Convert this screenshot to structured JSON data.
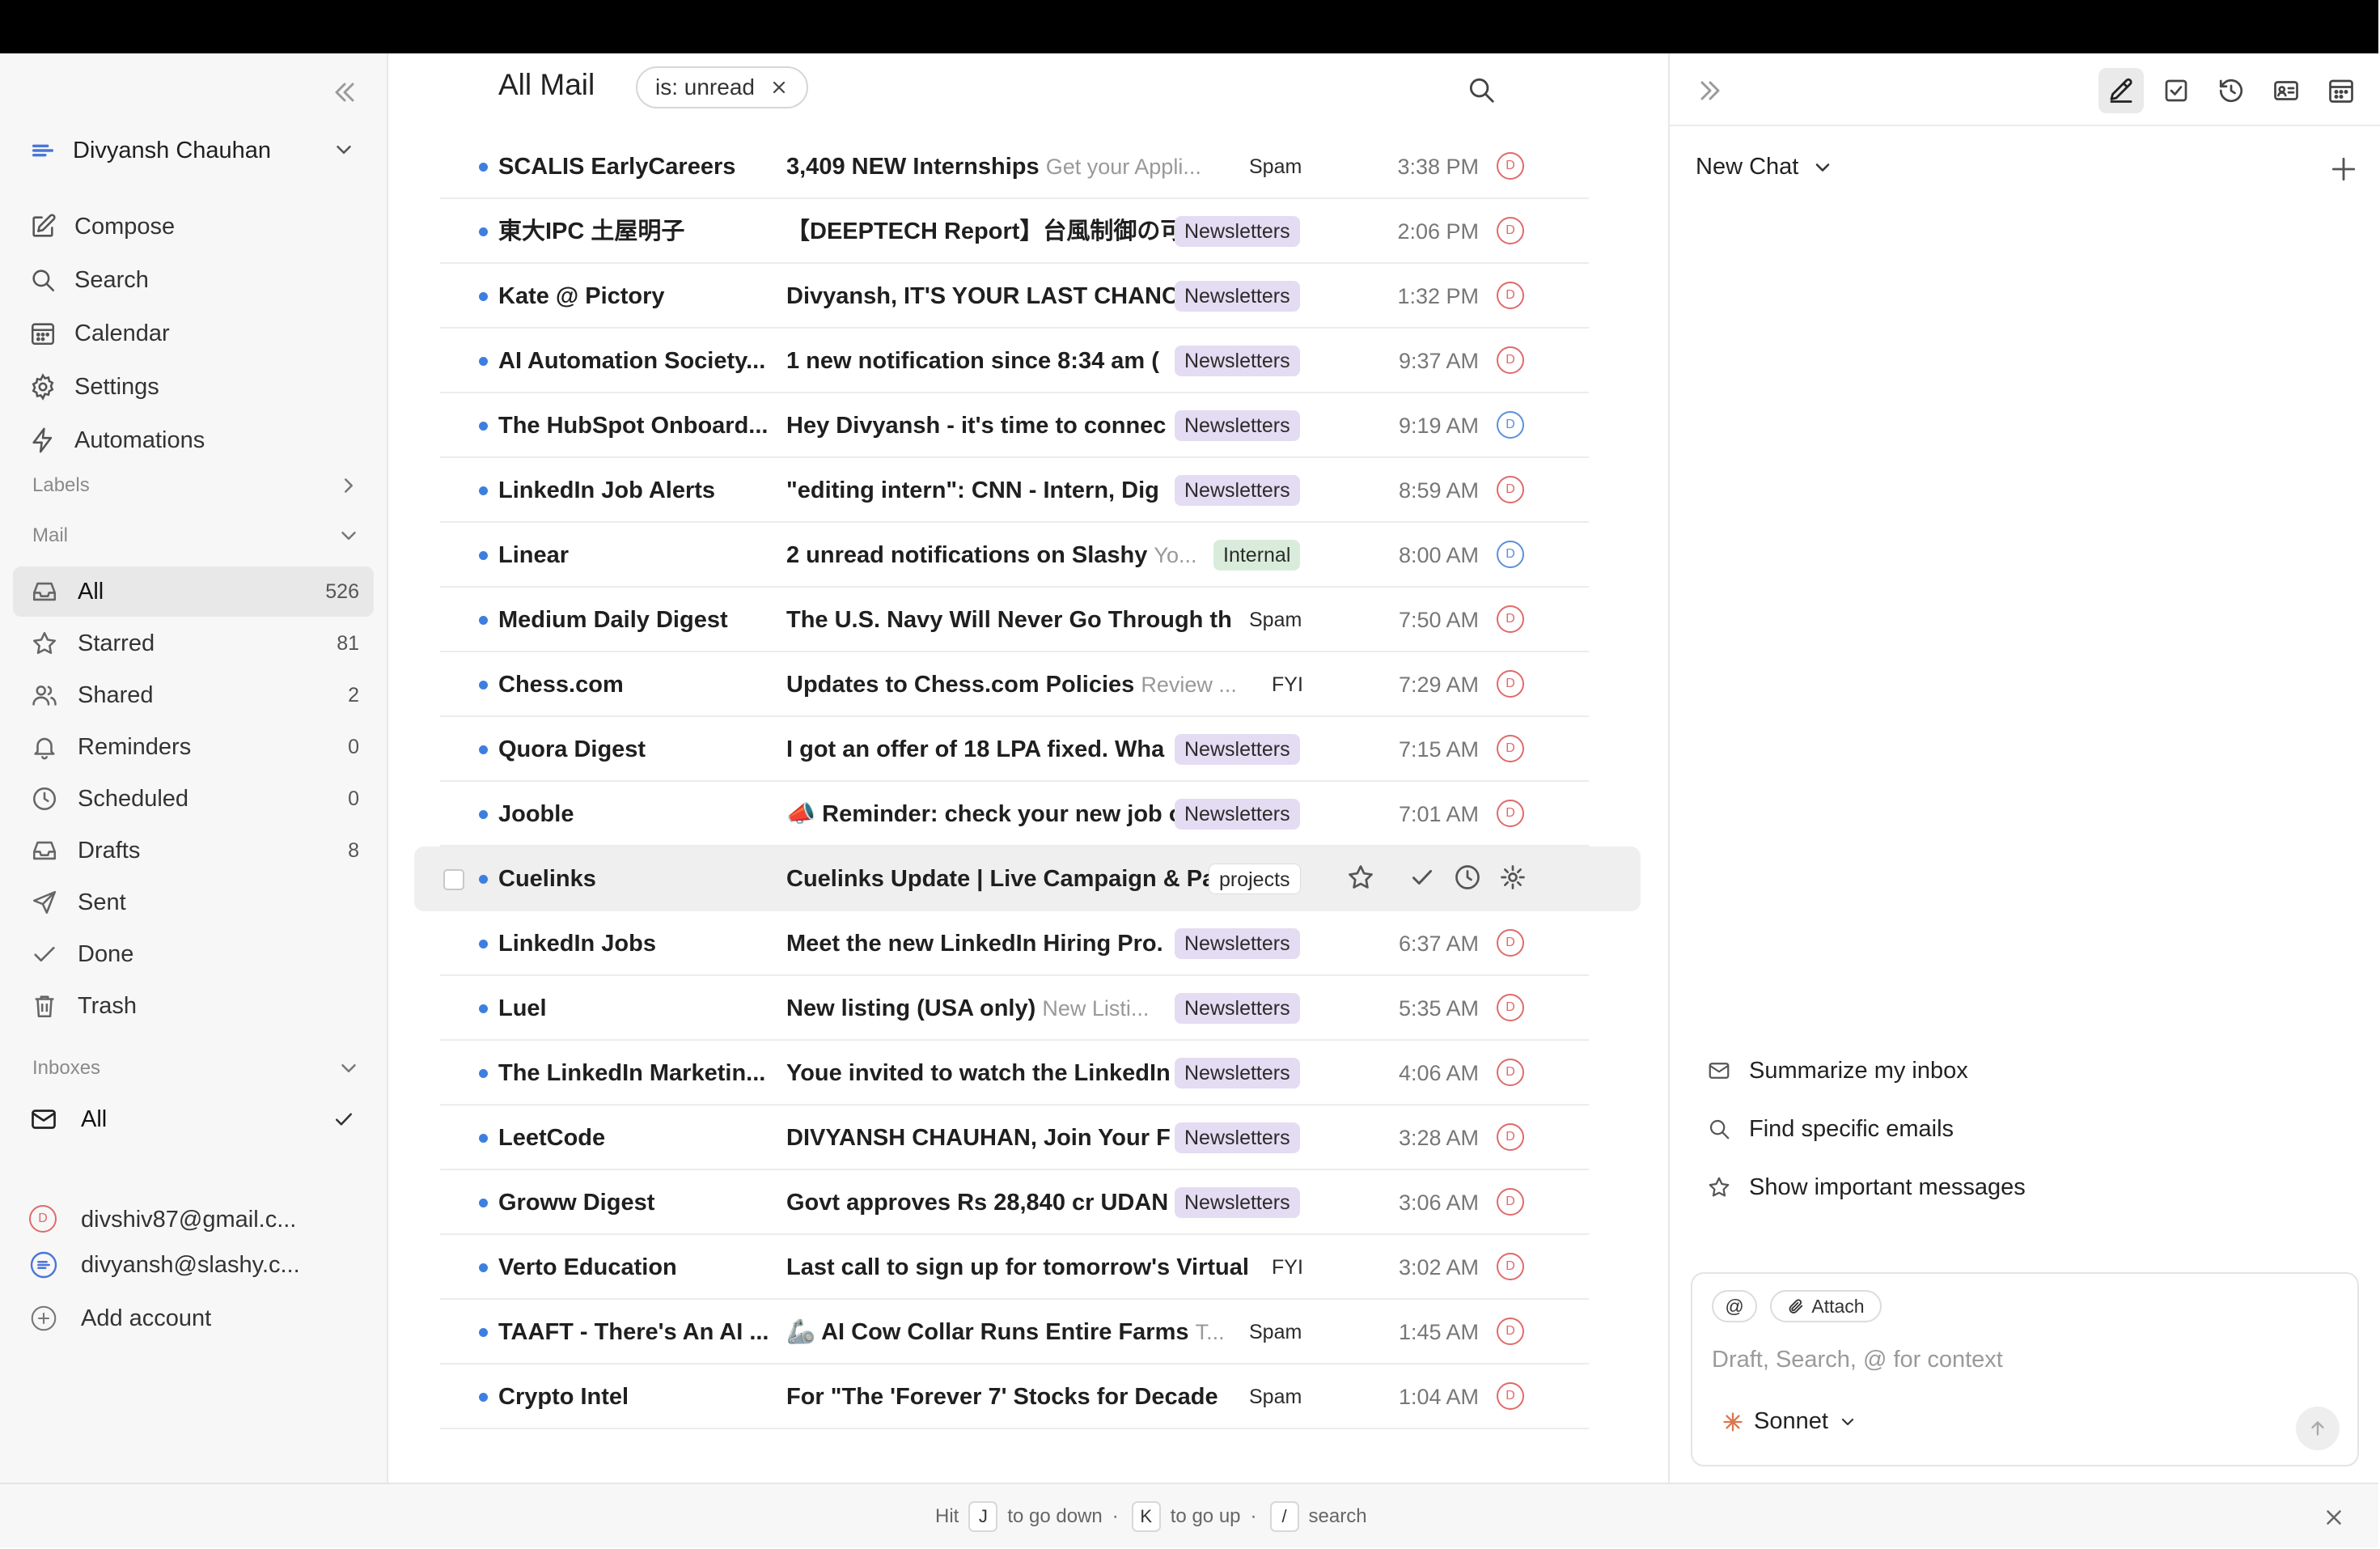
{
  "account": {
    "name": "Divyansh Chauhan"
  },
  "nav": [
    {
      "label": "Compose",
      "icon": "compose-icon"
    },
    {
      "label": "Search",
      "icon": "search-icon"
    },
    {
      "label": "Calendar",
      "icon": "calendar-icon"
    },
    {
      "label": "Settings",
      "icon": "gear-icon"
    },
    {
      "label": "Automations",
      "icon": "bolt-icon"
    }
  ],
  "sections": {
    "labels": "Labels",
    "mail": "Mail",
    "inboxes": "Inboxes"
  },
  "mail_folders": [
    {
      "label": "All",
      "count": "526",
      "active": true
    },
    {
      "label": "Starred",
      "count": "81"
    },
    {
      "label": "Shared",
      "count": "2"
    },
    {
      "label": "Reminders",
      "count": "0"
    },
    {
      "label": "Scheduled",
      "count": "0"
    },
    {
      "label": "Drafts",
      "count": "8"
    },
    {
      "label": "Sent",
      "count": ""
    },
    {
      "label": "Done",
      "count": ""
    },
    {
      "label": "Trash",
      "count": ""
    }
  ],
  "inboxes": [
    {
      "label": "All",
      "checked": true
    },
    {
      "label": "divshiv87@gmail.c...",
      "avatar": "D"
    },
    {
      "label": "divyansh@slashy.c..."
    },
    {
      "label": "Add account"
    }
  ],
  "header": {
    "title": "All Mail",
    "filter": "is: unread"
  },
  "emails": [
    {
      "sender": "SCALIS EarlyCareers",
      "subject": "3,409 NEW Internships",
      "preview": "Get your Appli...",
      "tag": "Spam",
      "time": "3:38 PM",
      "avatar": "D"
    },
    {
      "sender": "東大IPC 土屋明子",
      "subject": "【DEEPTECH Report】台風制御の可",
      "preview": "",
      "tag": "Newsletters",
      "time": "2:06 PM",
      "avatar": "D"
    },
    {
      "sender": "Kate @ Pictory",
      "subject": "Divyansh, IT'S YOUR LAST CHANC",
      "preview": "",
      "tag": "Newsletters",
      "time": "1:32 PM",
      "avatar": "D"
    },
    {
      "sender": "AI Automation Society...",
      "subject": "1 new notification since 8:34 am (",
      "preview": "",
      "tag": "Newsletters",
      "time": "9:37 AM",
      "avatar": "D"
    },
    {
      "sender": "The HubSpot Onboard...",
      "subject": "Hey Divyansh - it's time to connec",
      "preview": "",
      "tag": "Newsletters",
      "time": "9:19 AM",
      "avatar": "D"
    },
    {
      "sender": "LinkedIn Job Alerts",
      "subject": "\"editing intern\": CNN - Intern, Dig",
      "preview": "",
      "tag": "Newsletters",
      "time": "8:59 AM",
      "avatar": "D"
    },
    {
      "sender": "Linear",
      "subject": "2 unread notifications on Slashy",
      "preview": "Yo...",
      "tag": "Internal",
      "time": "8:00 AM",
      "avatar": "D"
    },
    {
      "sender": "Medium Daily Digest",
      "subject": "The U.S. Navy Will Never Go Through th",
      "preview": "",
      "tag": "Spam",
      "time": "7:50 AM",
      "avatar": "D"
    },
    {
      "sender": "Chess.com",
      "subject": "Updates to Chess.com Policies",
      "preview": "Review ...",
      "tag": "FYI",
      "time": "7:29 AM",
      "avatar": "D"
    },
    {
      "sender": "Quora Digest",
      "subject": "I got an offer of 18 LPA fixed. Wha",
      "preview": "",
      "tag": "Newsletters",
      "time": "7:15 AM",
      "avatar": "D"
    },
    {
      "sender": "Jooble",
      "subject": "📣 Reminder: check your new job o",
      "preview": "",
      "tag": "Newsletters",
      "time": "7:01 AM",
      "avatar": "D"
    },
    {
      "sender": "Cuelinks",
      "subject": "Cuelinks Update | Live Campaign & Pa",
      "preview": "",
      "tag": "projects",
      "time": "",
      "avatar": ""
    },
    {
      "sender": "LinkedIn Jobs",
      "subject": "Meet the new LinkedIn Hiring Pro.",
      "preview": "",
      "tag": "Newsletters",
      "time": "6:37 AM",
      "avatar": "D"
    },
    {
      "sender": "Luel",
      "subject": "New listing (USA only)",
      "preview": "New Listi...",
      "tag": "Newsletters",
      "time": "5:35 AM",
      "avatar": "D"
    },
    {
      "sender": "The LinkedIn Marketin...",
      "subject": "Youe invited to watch the LinkedIn",
      "preview": "",
      "tag": "Newsletters",
      "time": "4:06 AM",
      "avatar": "D"
    },
    {
      "sender": "LeetCode",
      "subject": "DIVYANSH CHAUHAN, Join Your F",
      "preview": "",
      "tag": "Newsletters",
      "time": "3:28 AM",
      "avatar": "D"
    },
    {
      "sender": "Groww Digest",
      "subject": "Govt approves Rs 28,840 cr UDAN",
      "preview": "",
      "tag": "Newsletters",
      "time": "3:06 AM",
      "avatar": "D"
    },
    {
      "sender": "Verto Education",
      "subject": "Last call to sign up for tomorrow's Virtual",
      "preview": "",
      "tag": "FYI",
      "time": "3:02 AM",
      "avatar": "D"
    },
    {
      "sender": "TAAFT - There's An AI ...",
      "subject": "🦾 AI Cow Collar Runs Entire Farms",
      "preview": "T...",
      "tag": "Spam",
      "time": "1:45 AM",
      "avatar": "D"
    },
    {
      "sender": "Crypto Intel",
      "subject": "For \"The 'Forever 7' Stocks for Decade",
      "preview": "",
      "tag": "Spam",
      "time": "1:04 AM",
      "avatar": "D"
    }
  ],
  "chat": {
    "title": "New Chat",
    "suggestions": [
      "Summarize my inbox",
      "Find specific emails",
      "Show important messages"
    ],
    "mention": "@",
    "attach": "Attach",
    "placeholder": "Draft, Search, @ for context",
    "model": "Sonnet"
  },
  "footer": {
    "hit": "Hit",
    "key_down": "J",
    "down_text": "to go down",
    "key_up": "K",
    "up_text": "to go up",
    "key_search": "/",
    "search_text": "search",
    "sep": "·"
  },
  "colors": {
    "unread_dot": "#3d7fe0",
    "newsletters_tag": "#e4dcf2",
    "internal_tag": "#d9ecdb",
    "avatar_red": "#e06a6a",
    "avatar_blue": "#5b8fdc"
  }
}
